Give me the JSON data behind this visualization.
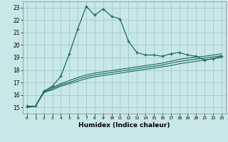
{
  "title": "",
  "xlabel": "Humidex (Indice chaleur)",
  "ylabel": "",
  "bg_color": "#c8e8e8",
  "grid_color": "#a8c8c8",
  "line_color": "#1a6b5a",
  "xlim": [
    -0.5,
    23.5
  ],
  "ylim": [
    14.5,
    23.5
  ],
  "yticks": [
    15,
    16,
    17,
    18,
    19,
    20,
    21,
    22,
    23
  ],
  "xticks": [
    0,
    1,
    2,
    3,
    4,
    5,
    6,
    7,
    8,
    9,
    10,
    11,
    12,
    13,
    14,
    15,
    16,
    17,
    18,
    19,
    20,
    21,
    22,
    23
  ],
  "xtick_labels": [
    "0",
    "1",
    "2",
    "3",
    "4",
    "5",
    "6",
    "7",
    "8",
    "9",
    "10",
    "11",
    "12",
    "13",
    "14",
    "15",
    "16",
    "17",
    "18",
    "19",
    "20",
    "21",
    "22",
    "23"
  ],
  "main_line_x": [
    0,
    1,
    2,
    3,
    4,
    5,
    6,
    7,
    8,
    9,
    10,
    11,
    12,
    13,
    14,
    15,
    16,
    17,
    18,
    19,
    20,
    21,
    22,
    23
  ],
  "main_line_y": [
    15.1,
    15.1,
    16.3,
    16.7,
    17.5,
    19.3,
    21.3,
    23.1,
    22.4,
    22.9,
    22.3,
    22.1,
    20.3,
    19.4,
    19.2,
    19.2,
    19.1,
    19.3,
    19.4,
    19.2,
    19.1,
    18.8,
    18.9,
    19.1
  ],
  "ref1_y": [
    15.0,
    15.1,
    16.2,
    16.4,
    16.7,
    16.9,
    17.1,
    17.3,
    17.45,
    17.55,
    17.65,
    17.75,
    17.85,
    17.95,
    18.05,
    18.15,
    18.25,
    18.35,
    18.5,
    18.6,
    18.7,
    18.8,
    18.9,
    19.0
  ],
  "ref2_y": [
    15.0,
    15.1,
    16.2,
    16.5,
    16.8,
    17.0,
    17.25,
    17.45,
    17.6,
    17.7,
    17.8,
    17.9,
    18.0,
    18.1,
    18.2,
    18.3,
    18.4,
    18.55,
    18.68,
    18.78,
    18.88,
    18.95,
    19.05,
    19.15
  ],
  "ref3_y": [
    15.0,
    15.1,
    16.3,
    16.6,
    16.9,
    17.15,
    17.4,
    17.6,
    17.75,
    17.85,
    17.95,
    18.05,
    18.15,
    18.25,
    18.35,
    18.45,
    18.55,
    18.7,
    18.85,
    18.95,
    19.05,
    19.1,
    19.2,
    19.3
  ]
}
